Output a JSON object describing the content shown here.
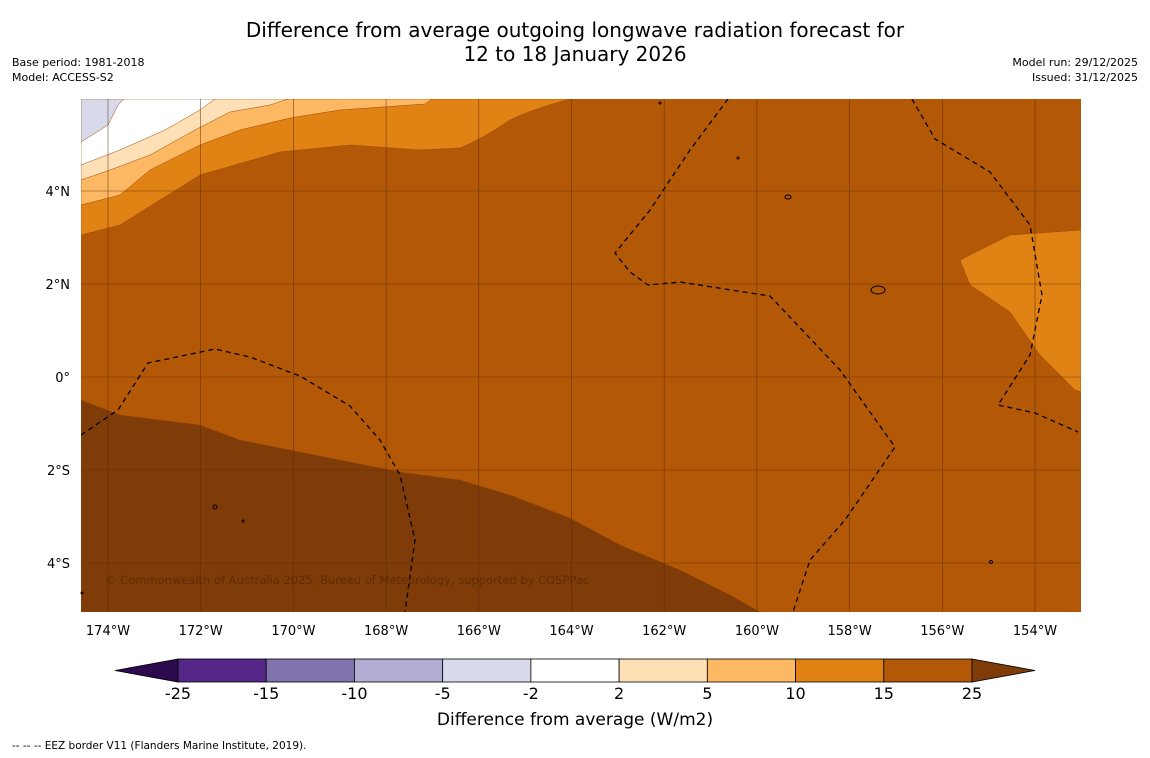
{
  "title": {
    "line1": "Difference from average outgoing longwave radiation forecast for",
    "line2": "12 to 18 January 2026"
  },
  "meta_left": {
    "base_period": "Base period: 1981-2018",
    "model": "Model: ACCESS-S2"
  },
  "meta_right": {
    "model_run": "Model run: 29/12/2025",
    "issued": "Issued: 31/12/2025"
  },
  "map": {
    "lat_labels": [
      "4°N",
      "2°N",
      "0°",
      "2°S",
      "4°S"
    ],
    "lon_labels": [
      "174°W",
      "172°W",
      "170°W",
      "168°W",
      "166°W",
      "164°W",
      "162°W",
      "160°W",
      "158°W",
      "156°W",
      "154°W"
    ],
    "copyright": "© Commonwealth of Australia 2025, Bureau of Meteorology, supported by COSPPac",
    "colors": {
      "below_25": "#2d0a4e",
      "c_25_15": "#542788",
      "c_15_10": "#8073ac",
      "c_10_5": "#b2abd2",
      "c_5_2": "#d8daeb",
      "c_2_2": "#ffffff",
      "c_2_5": "#fee0b6",
      "c_5_10": "#fdb863",
      "c_10_15": "#e08214",
      "c_15_25": "#b35806",
      "above_25": "#7f3b08"
    }
  },
  "colorbar": {
    "ticks": [
      "-25",
      "-15",
      "-10",
      "-5",
      "-2",
      "2",
      "5",
      "10",
      "15",
      "25"
    ],
    "label": "Difference from average (W/m2)"
  },
  "footnote": "--  --  -- EEZ border V11 (Flanders Marine Institute, 2019)."
}
